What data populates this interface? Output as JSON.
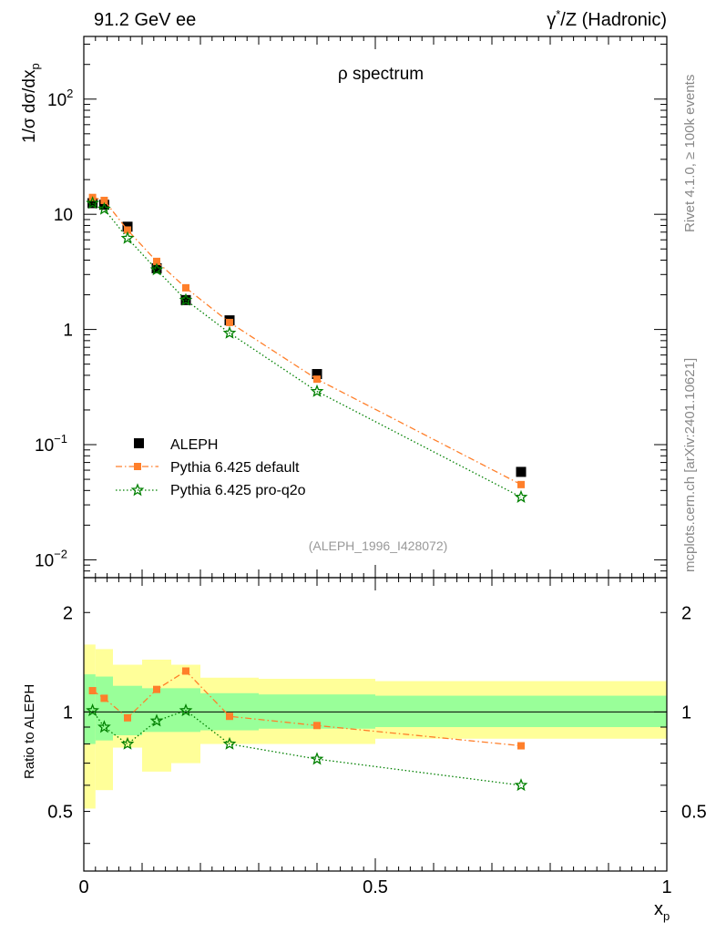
{
  "header": {
    "left": "91.2 GeV ee",
    "right_prefix": "γ",
    "right_sup": "*",
    "right_suffix": "/Z (Hadronic)"
  },
  "side_labels": {
    "rivet": "Rivet 4.1.0, ≥ 100k events",
    "mcplots": "mcplots.cern.ch [arXiv:2401.10621]"
  },
  "colors": {
    "data": "#000000",
    "default": "#ff7f2a",
    "proq2o": "#008000",
    "band_inner": "#99ff99",
    "band_outer": "#ffff99"
  },
  "chart_data": [
    {
      "type": "scatter",
      "scale": "log",
      "title": "ρ spectrum",
      "xlabel_main": "x",
      "xlabel_sub": "p",
      "ylabel_prefix": "1/σ  dσ/dx",
      "ylabel_sub": "p",
      "analysis_tag": "(ALEPH_1996_I428072)",
      "xlim": [
        0,
        1
      ],
      "ylim": [
        0.007,
        350
      ],
      "x_ticks": [
        0,
        0.5,
        1
      ],
      "y_ticks": [
        {
          "value": 0.01,
          "base": "10",
          "exp": "−2"
        },
        {
          "value": 0.1,
          "base": "10",
          "exp": "−1"
        },
        {
          "value": 1,
          "base": "1",
          "exp": ""
        },
        {
          "value": 10,
          "base": "10",
          "exp": ""
        },
        {
          "value": 100,
          "base": "10",
          "exp": "2"
        }
      ],
      "legend": [
        {
          "key": "data",
          "label": "ALEPH"
        },
        {
          "key": "default",
          "label": "Pythia 6.425 default"
        },
        {
          "key": "proq2o",
          "label": "Pythia 6.425 pro-q2o"
        }
      ],
      "series": [
        {
          "name": "ALEPH",
          "key": "data",
          "marker": "square",
          "x": [
            0.015,
            0.035,
            0.075,
            0.125,
            0.175,
            0.25,
            0.4,
            0.75
          ],
          "y": [
            12.5,
            12.1,
            7.8,
            3.4,
            1.8,
            1.2,
            0.41,
            0.058
          ]
        },
        {
          "name": "Pythia 6.425 default",
          "key": "default",
          "marker": "square-small",
          "line": "dashdot",
          "x": [
            0.015,
            0.035,
            0.075,
            0.125,
            0.175,
            0.25,
            0.4,
            0.75
          ],
          "y": [
            14.0,
            13.2,
            7.3,
            3.9,
            2.3,
            1.15,
            0.37,
            0.045
          ]
        },
        {
          "name": "Pythia 6.425 pro-q2o",
          "key": "proq2o",
          "marker": "star",
          "line": "dotted",
          "x": [
            0.015,
            0.035,
            0.075,
            0.125,
            0.175,
            0.25,
            0.4,
            0.75
          ],
          "y": [
            12.5,
            11.1,
            6.2,
            3.3,
            1.8,
            0.93,
            0.29,
            0.035
          ]
        }
      ]
    },
    {
      "type": "scatter",
      "scale": "log",
      "ylabel": "Ratio to ALEPH",
      "xlim": [
        0,
        1
      ],
      "ylim": [
        0.33,
        2.55
      ],
      "x_ticks": [
        0,
        0.5,
        1
      ],
      "y_ticks": [
        {
          "value": 0.5,
          "label": "0.5"
        },
        {
          "value": 1,
          "label": "1"
        },
        {
          "value": 2,
          "label": "2"
        }
      ],
      "bands": [
        {
          "x0": 0.0,
          "x1": 0.02,
          "outer": [
            0.51,
            1.6
          ],
          "inner": [
            0.8,
            1.3
          ]
        },
        {
          "x0": 0.02,
          "x1": 0.05,
          "outer": [
            0.58,
            1.55
          ],
          "inner": [
            0.82,
            1.28
          ]
        },
        {
          "x0": 0.05,
          "x1": 0.1,
          "outer": [
            0.78,
            1.39
          ],
          "inner": [
            0.85,
            1.2
          ]
        },
        {
          "x0": 0.1,
          "x1": 0.15,
          "outer": [
            0.66,
            1.44
          ],
          "inner": [
            0.87,
            1.18
          ]
        },
        {
          "x0": 0.15,
          "x1": 0.2,
          "outer": [
            0.7,
            1.39
          ],
          "inner": [
            0.87,
            1.18
          ]
        },
        {
          "x0": 0.2,
          "x1": 0.3,
          "outer": [
            0.8,
            1.27
          ],
          "inner": [
            0.88,
            1.14
          ]
        },
        {
          "x0": 0.3,
          "x1": 0.5,
          "outer": [
            0.8,
            1.26
          ],
          "inner": [
            0.89,
            1.13
          ]
        },
        {
          "x0": 0.5,
          "x1": 1.0,
          "outer": [
            0.83,
            1.24
          ],
          "inner": [
            0.9,
            1.12
          ]
        }
      ],
      "series": [
        {
          "name": "Pythia 6.425 default",
          "key": "default",
          "marker": "square-small",
          "line": "dashdot",
          "x": [
            0.015,
            0.035,
            0.075,
            0.125,
            0.175,
            0.25,
            0.4,
            0.75
          ],
          "y": [
            1.16,
            1.1,
            0.96,
            1.17,
            1.33,
            0.97,
            0.91,
            0.79
          ]
        },
        {
          "name": "Pythia 6.425 pro-q2o",
          "key": "proq2o",
          "marker": "star",
          "line": "dotted",
          "x": [
            0.015,
            0.035,
            0.075,
            0.125,
            0.175,
            0.25,
            0.4,
            0.75
          ],
          "y": [
            1.01,
            0.9,
            0.8,
            0.94,
            1.01,
            0.8,
            0.72,
            0.6
          ]
        }
      ]
    }
  ]
}
